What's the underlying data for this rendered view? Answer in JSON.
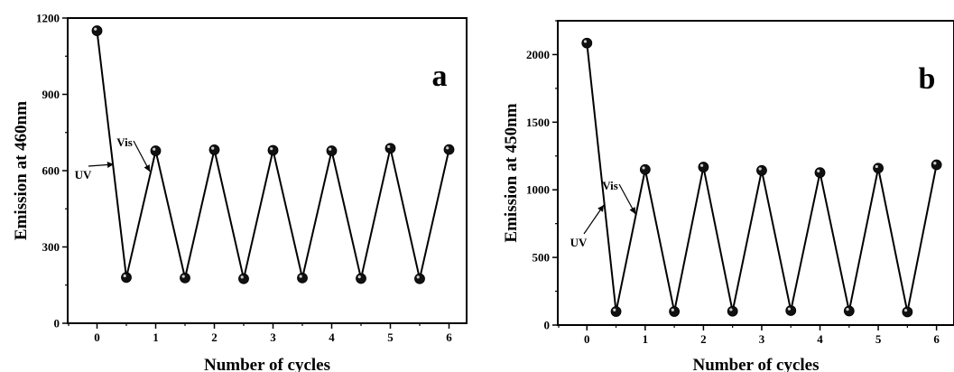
{
  "chart_data": [
    {
      "type": "line",
      "panel_label": "a",
      "xlabel": "Number of cycles",
      "ylabel": "Emission at 460nm",
      "xlim": [
        -0.5,
        6.3
      ],
      "ylim": [
        0,
        1200
      ],
      "xticks": [
        0,
        1,
        2,
        3,
        4,
        5,
        6
      ],
      "yticks": [
        0,
        300,
        600,
        900,
        1200
      ],
      "series": [
        {
          "x": [
            0,
            0.5,
            1,
            1.5,
            2,
            2.5,
            3,
            3.5,
            4,
            4.5,
            5,
            5.5,
            6
          ],
          "y": [
            1150,
            180,
            678,
            178,
            682,
            175,
            680,
            178,
            678,
            176,
            688,
            175,
            683
          ]
        }
      ],
      "annotations": [
        {
          "text": "UV",
          "x": 0.25,
          "y": 600
        },
        {
          "text": "Vis",
          "x": 0.85,
          "y": 690
        }
      ],
      "grid": false
    },
    {
      "type": "line",
      "panel_label": "b",
      "xlabel": "Number of cycles",
      "ylabel": "Emission at 450nm",
      "xlim": [
        -0.5,
        6.3
      ],
      "ylim": [
        0,
        2250
      ],
      "xticks": [
        0,
        1,
        2,
        3,
        4,
        5,
        6
      ],
      "yticks": [
        0,
        500,
        1000,
        1500,
        2000
      ],
      "series": [
        {
          "x": [
            0,
            0.5,
            1,
            1.5,
            2,
            2.5,
            3,
            3.5,
            4,
            4.5,
            5,
            5.5,
            6
          ],
          "y": [
            2085,
            100,
            1150,
            100,
            1168,
            102,
            1143,
            107,
            1127,
            104,
            1160,
            97,
            1185
          ]
        }
      ],
      "annotations": [
        {
          "text": "UV",
          "x": 0.3,
          "y": 750
        },
        {
          "text": "Vis",
          "x": 0.85,
          "y": 1150
        }
      ],
      "grid": false
    }
  ]
}
